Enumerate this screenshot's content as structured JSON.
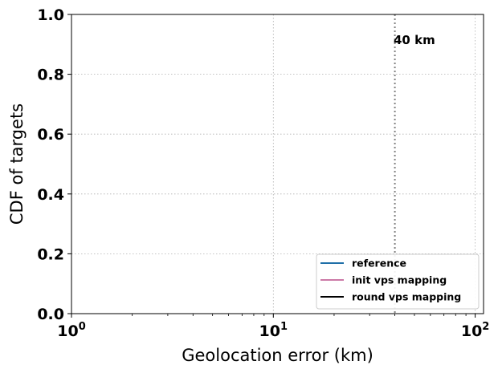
{
  "chart_data": {
    "type": "line",
    "title": "",
    "xlabel": "Geolocation error (km)",
    "ylabel": "CDF of targets",
    "x_scale": "log",
    "xlim": [
      1,
      110
    ],
    "ylim": [
      0,
      1
    ],
    "x_ticks": [
      1,
      10,
      100
    ],
    "x_tick_labels": [
      {
        "base": "10",
        "exp": "0"
      },
      {
        "base": "10",
        "exp": "1"
      },
      {
        "base": "10",
        "exp": "2"
      }
    ],
    "y_ticks": [
      0,
      0.2,
      0.4,
      0.6,
      0.8,
      1.0
    ],
    "y_tick_labels": [
      "0.0",
      "0.2",
      "0.4",
      "0.6",
      "0.8",
      "1.0"
    ],
    "grid": true,
    "legend_position": "lower-right",
    "series": [
      {
        "name": "reference",
        "color": "#1f6fa8",
        "x": [],
        "y": []
      },
      {
        "name": "init vps mapping",
        "color": "#cc79a7",
        "x": [],
        "y": []
      },
      {
        "name": "round vps mapping",
        "color": "#000000",
        "x": [],
        "y": []
      }
    ],
    "reference_line": {
      "x": 40,
      "label": "40 km",
      "color": "#808080",
      "style": "dotted"
    }
  }
}
